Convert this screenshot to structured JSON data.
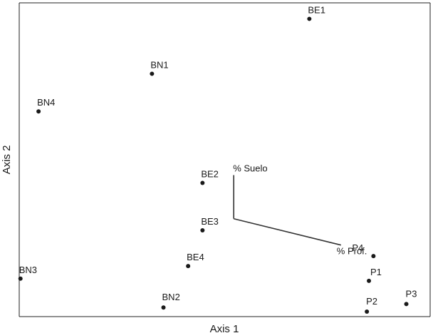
{
  "chart_data": {
    "type": "scatter",
    "xlabel": "Axis 1",
    "ylabel": "Axis 2",
    "xlim": [
      0,
      1
    ],
    "ylim": [
      0,
      1
    ],
    "grid": false,
    "points": [
      {
        "label": "BE1",
        "x": 0.706,
        "y": 0.949
      },
      {
        "label": "BN1",
        "x": 0.323,
        "y": 0.774
      },
      {
        "label": "BN4",
        "x": 0.047,
        "y": 0.654
      },
      {
        "label": "BE2",
        "x": 0.446,
        "y": 0.426
      },
      {
        "label": "BE3",
        "x": 0.446,
        "y": 0.275
      },
      {
        "label": "BE4",
        "x": 0.411,
        "y": 0.161
      },
      {
        "label": "BN3",
        "x": 0.003,
        "y": 0.121
      },
      {
        "label": "BN2",
        "x": 0.351,
        "y": 0.029
      },
      {
        "label": "P4",
        "x": 0.862,
        "y": 0.193
      },
      {
        "label": "P1",
        "x": 0.851,
        "y": 0.114
      },
      {
        "label": "P2",
        "x": 0.846,
        "y": 0.016
      },
      {
        "label": "P3",
        "x": 0.942,
        "y": 0.04
      }
    ],
    "vectors": [
      {
        "label": "% Suelo",
        "origin": [
          0.522,
          0.312
        ],
        "end": [
          0.522,
          0.451
        ]
      },
      {
        "label": "% Prof.",
        "origin": [
          0.522,
          0.312
        ],
        "end": [
          0.783,
          0.228
        ]
      }
    ]
  }
}
